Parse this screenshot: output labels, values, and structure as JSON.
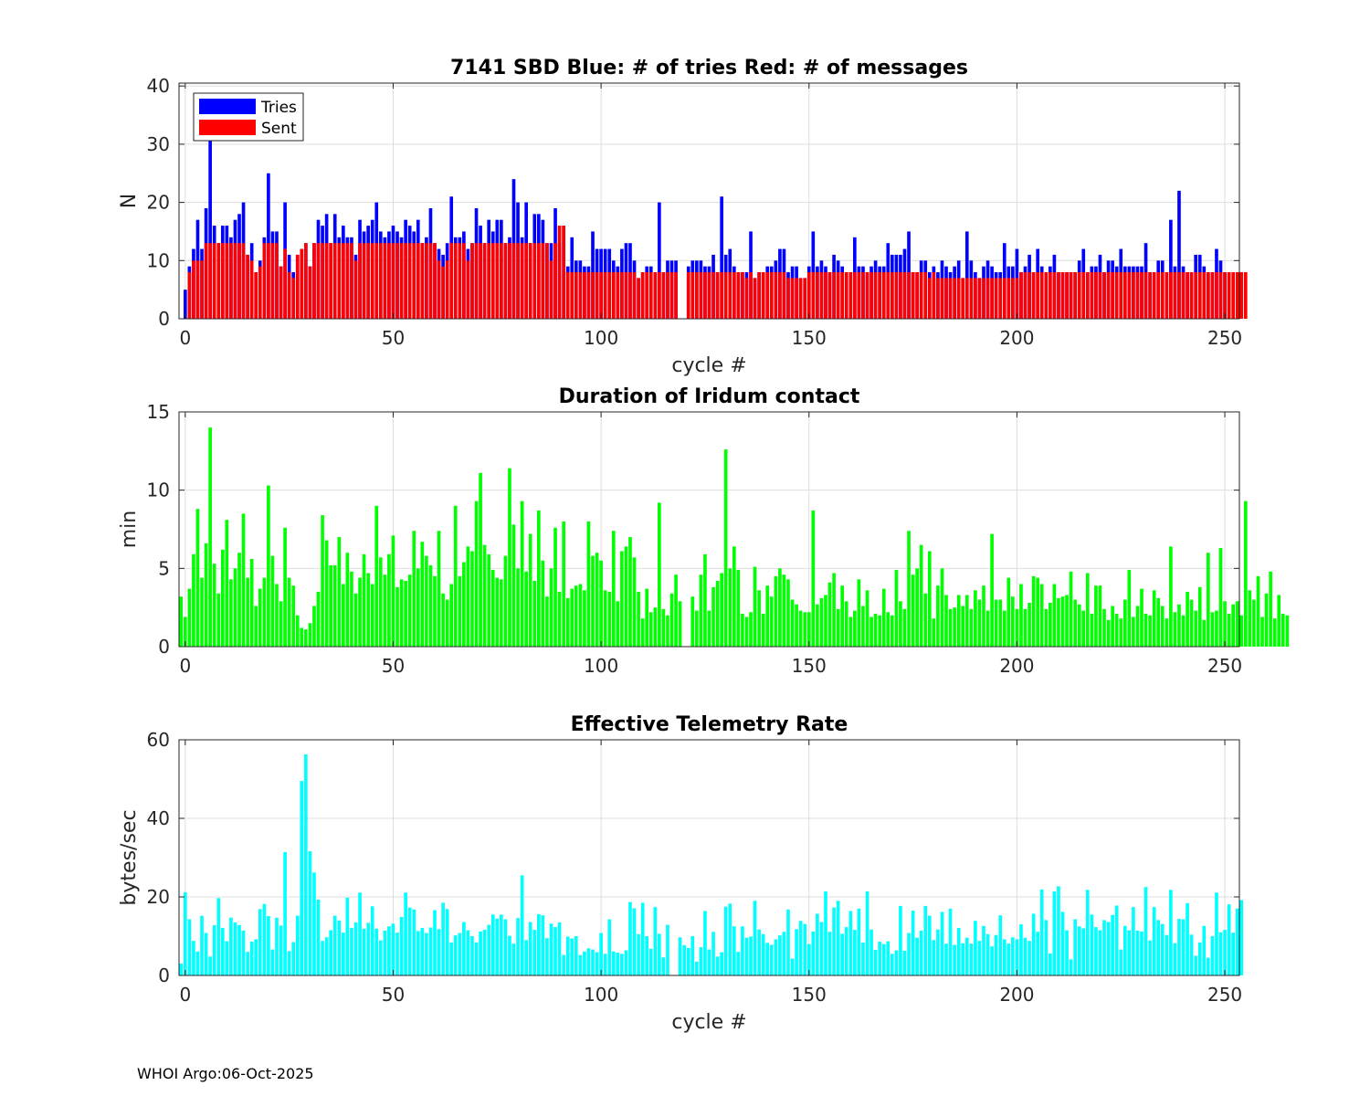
{
  "footer": "WHOI Argo:06-Oct-2025",
  "chart_data": [
    {
      "id": "sbd",
      "type": "bar",
      "title": "7141 SBD  Blue: # of tries   Red: # of messages",
      "xlabel": "cycle #",
      "ylabel": "N",
      "xlim": [
        -1.5,
        253.5
      ],
      "ylim": [
        0,
        40.5
      ],
      "xticks": [
        0,
        50,
        100,
        150,
        200,
        250
      ],
      "yticks": [
        0,
        10,
        20,
        30,
        40
      ],
      "grid": true,
      "legend": {
        "position": "top-left",
        "entries": [
          {
            "label": "Tries",
            "color": "#0000ff"
          },
          {
            "label": "Sent",
            "color": "#ff0000"
          }
        ]
      },
      "series": [
        {
          "name": "Tries",
          "color": "#0000ff",
          "x_start": 0,
          "values": [
            5,
            9,
            12,
            17,
            12,
            19,
            32,
            16,
            13,
            16,
            16,
            14,
            17,
            18,
            20,
            11,
            13,
            8,
            10,
            14,
            25,
            15,
            15,
            9,
            20,
            11,
            8,
            11,
            12,
            13,
            9,
            13,
            17,
            16,
            18,
            13,
            18,
            14,
            16,
            14,
            14,
            11,
            17,
            15,
            16,
            17,
            20,
            15,
            14,
            15,
            16,
            15,
            14,
            17,
            16,
            15,
            17,
            13,
            14,
            19,
            13,
            12,
            11,
            13,
            21,
            14,
            14,
            15,
            12,
            13,
            19,
            16,
            13,
            17,
            15,
            17,
            17,
            13,
            14,
            24,
            20,
            14,
            20,
            13,
            18,
            18,
            17,
            13,
            13,
            19,
            13,
            16,
            9,
            14,
            10,
            10,
            9,
            9,
            15,
            12,
            12,
            12,
            12,
            10,
            9,
            12,
            13,
            13,
            10,
            7,
            8,
            9,
            9,
            8,
            20,
            8,
            10,
            10,
            10,
            0,
            0,
            9,
            10,
            10,
            10,
            9,
            9,
            11,
            8,
            21,
            11,
            12,
            9,
            8,
            8,
            8,
            15,
            7,
            8,
            8,
            9,
            9,
            10,
            12,
            12,
            8,
            9,
            9,
            7,
            7,
            9,
            15,
            9,
            10,
            9,
            8,
            11,
            10,
            9,
            8,
            8,
            14,
            9,
            9,
            8,
            9,
            10,
            9,
            9,
            13,
            11,
            11,
            11,
            12,
            15,
            8,
            8,
            10,
            10,
            8,
            9,
            8,
            10,
            9,
            8,
            9,
            10,
            7,
            15,
            10,
            8,
            7,
            9,
            10,
            9,
            8,
            8,
            13,
            9,
            9,
            12,
            8,
            9,
            11,
            8,
            12,
            9,
            8,
            9,
            11,
            8,
            8,
            8,
            8,
            8,
            10,
            12,
            8,
            9,
            9,
            11,
            8,
            10,
            10,
            9,
            12,
            9,
            9,
            9,
            9,
            9,
            13,
            8,
            8,
            10,
            10,
            8,
            17,
            9,
            22,
            9,
            8,
            8,
            11,
            11,
            9,
            8,
            8,
            12,
            10,
            8
          ]
        },
        {
          "name": "Sent",
          "color": "#ff0000",
          "x_start": 0,
          "values": [
            0,
            8,
            10,
            10,
            10,
            13,
            13,
            13,
            13,
            13,
            13,
            13,
            13,
            13,
            13,
            11,
            10,
            8,
            9,
            13,
            13,
            13,
            13,
            9,
            12,
            8,
            7,
            11,
            12,
            13,
            9,
            13,
            13,
            13,
            13,
            13,
            13,
            13,
            13,
            13,
            13,
            10,
            13,
            13,
            13,
            13,
            13,
            13,
            13,
            13,
            13,
            13,
            13,
            13,
            13,
            13,
            13,
            13,
            13,
            13,
            13,
            10,
            9,
            10,
            13,
            13,
            13,
            13,
            10,
            13,
            13,
            13,
            13,
            13,
            13,
            13,
            13,
            13,
            13,
            13,
            13,
            13,
            13,
            13,
            13,
            13,
            13,
            13,
            10,
            13,
            16,
            16,
            8,
            8,
            8,
            8,
            8,
            8,
            8,
            8,
            8,
            8,
            8,
            8,
            8,
            8,
            8,
            8,
            8,
            7,
            8,
            8,
            8,
            8,
            8,
            8,
            8,
            8,
            8,
            0,
            0,
            8,
            8,
            8,
            8,
            8,
            8,
            8,
            8,
            8,
            8,
            8,
            8,
            8,
            8,
            7,
            8,
            7,
            8,
            8,
            8,
            8,
            8,
            8,
            8,
            7,
            7,
            7,
            7,
            7,
            8,
            8,
            8,
            8,
            8,
            8,
            8,
            8,
            8,
            8,
            8,
            8,
            8,
            8,
            8,
            8,
            8,
            8,
            8,
            8,
            8,
            8,
            8,
            8,
            8,
            8,
            8,
            8,
            8,
            7,
            8,
            7,
            7,
            7,
            7,
            7,
            7,
            7,
            7,
            7,
            7,
            7,
            7,
            7,
            7,
            7,
            7,
            7,
            7,
            7,
            7,
            8,
            8,
            8,
            8,
            8,
            8,
            8,
            8,
            8,
            8,
            8,
            8,
            8,
            8,
            8,
            8,
            8,
            8,
            8,
            8,
            8,
            8,
            8,
            8,
            8,
            8,
            8,
            8,
            8,
            8,
            8,
            8,
            8,
            8,
            8,
            8,
            8,
            8,
            8,
            8,
            8,
            8,
            8,
            8,
            8,
            8,
            8,
            8,
            8,
            8,
            8,
            8,
            8,
            8,
            8
          ]
        }
      ]
    },
    {
      "id": "duration",
      "type": "bar",
      "title": "Duration of Iridum contact",
      "xlabel": "",
      "ylabel": "min",
      "xlim": [
        -1.5,
        253.5
      ],
      "ylim": [
        0,
        15
      ],
      "xticks": [
        0,
        50,
        100,
        150,
        200,
        250
      ],
      "yticks": [
        0,
        5,
        10,
        15
      ],
      "grid": true,
      "series": [
        {
          "name": "Duration",
          "color": "#00ff00",
          "x_start": -1,
          "values": [
            3.2,
            1.9,
            3.7,
            5.9,
            8.8,
            4.4,
            6.6,
            14.0,
            5.3,
            3.4,
            6.2,
            8.1,
            4.3,
            5.0,
            6.0,
            8.5,
            4.4,
            5.6,
            2.6,
            3.7,
            4.4,
            10.3,
            5.8,
            4.0,
            2.9,
            7.6,
            4.4,
            3.9,
            2.0,
            1.2,
            1.1,
            1.5,
            2.6,
            3.5,
            8.4,
            6.8,
            5.2,
            5.2,
            7.0,
            4.0,
            6.0,
            4.8,
            3.4,
            4.4,
            5.9,
            4.7,
            4.0,
            9.0,
            5.7,
            4.6,
            5.9,
            7.1,
            3.8,
            4.3,
            4.2,
            4.6,
            7.4,
            5.0,
            6.7,
            5.8,
            5.2,
            4.5,
            7.4,
            3.4,
            3.0,
            4.0,
            9.0,
            4.5,
            5.4,
            6.4,
            6.1,
            9.3,
            11.1,
            6.5,
            5.9,
            4.9,
            4.4,
            4.3,
            5.8,
            11.4,
            7.8,
            5.0,
            9.3,
            4.8,
            7.2,
            4.2,
            8.7,
            5.5,
            3.2,
            5.0,
            7.6,
            3.5,
            8.0,
            3.1,
            3.7,
            3.9,
            4.0,
            3.6,
            8.0,
            5.8,
            6.0,
            5.5,
            3.6,
            3.5,
            7.4,
            2.9,
            6.1,
            6.4,
            7.0,
            5.7,
            3.5,
            1.8,
            3.7,
            2.2,
            2.5,
            9.2,
            2.4,
            2.0,
            3.4,
            4.6,
            2.9,
            0.0,
            0.0,
            3.2,
            2.3,
            4.6,
            5.9,
            2.3,
            3.8,
            4.2,
            4.7,
            12.6,
            5.0,
            6.4,
            4.9,
            2.1,
            1.9,
            2.2,
            5.1,
            3.6,
            2.1,
            3.9,
            3.2,
            4.5,
            5.0,
            4.6,
            4.3,
            3.0,
            2.7,
            2.3,
            2.2,
            2.2,
            8.7,
            2.7,
            3.1,
            3.3,
            4.1,
            4.7,
            2.4,
            3.9,
            2.9,
            1.9,
            2.3,
            4.3,
            2.6,
            3.6,
            1.9,
            2.1,
            2.0,
            3.7,
            2.2,
            2.0,
            4.9,
            2.9,
            2.4,
            7.4,
            4.6,
            5.0,
            6.5,
            3.4,
            6.1,
            1.8,
            3.9,
            5.0,
            3.3,
            2.4,
            2.5,
            3.3,
            2.6,
            3.3,
            2.4,
            3.6,
            3.0,
            3.9,
            2.3,
            7.2,
            3.0,
            3.0,
            2.3,
            4.4,
            3.2,
            2.4,
            4.0,
            2.4,
            2.8,
            4.5,
            4.4,
            4.0,
            2.4,
            2.8,
            4.0,
            3.1,
            3.2,
            3.3,
            4.8,
            3.0,
            2.7,
            2.3,
            4.7,
            2.1,
            3.9,
            3.9,
            2.4,
            1.7,
            2.6,
            2.1,
            1.8,
            3.0,
            4.9,
            1.9,
            2.6,
            3.7,
            2.1,
            2.0,
            3.6,
            3.1,
            2.6,
            1.8,
            6.4,
            2.2,
            2.7,
            2.0,
            3.5,
            3.0,
            2.3,
            3.8,
            1.7,
            6.0,
            2.2,
            2.3,
            6.3,
            2.9,
            2.1,
            2.7,
            2.9,
            2.0,
            9.3,
            3.6,
            3.0,
            4.5,
            1.9,
            3.4,
            4.8,
            1.8,
            3.3,
            2.1,
            2.0
          ]
        }
      ]
    },
    {
      "id": "rate",
      "type": "bar",
      "title": "Effective Telemetry Rate",
      "xlabel": "cycle #",
      "ylabel": "bytes/sec",
      "xlim": [
        -1.5,
        253.5
      ],
      "ylim": [
        0,
        60
      ],
      "xticks": [
        0,
        50,
        100,
        150,
        200,
        250
      ],
      "yticks": [
        0,
        20,
        40,
        60
      ],
      "grid": true,
      "series": [
        {
          "name": "Rate",
          "color": "#00ffff",
          "x_start": -1,
          "values": [
            3.0,
            21.2,
            14.3,
            8.8,
            6.1,
            15.2,
            10.8,
            4.8,
            12.8,
            19.7,
            12.1,
            8.7,
            14.7,
            13.5,
            12.8,
            11.4,
            6.0,
            8.6,
            9.2,
            16.9,
            18.2,
            15.1,
            6.6,
            14.7,
            12.7,
            31.4,
            6.2,
            8.5,
            15.2,
            49.5,
            56.3,
            31.6,
            26.2,
            19.3,
            8.8,
            9.7,
            11.5,
            15.2,
            14.0,
            10.9,
            19.8,
            12.1,
            13.5,
            21.1,
            11.9,
            13.4,
            17.6,
            11.9,
            8.9,
            11.4,
            12.5,
            13.2,
            10.9,
            14.9,
            21.1,
            17.3,
            16.8,
            11.3,
            12.1,
            10.8,
            12.2,
            16.6,
            11.8,
            18.5,
            16.9,
            8.4,
            10.2,
            10.8,
            13.6,
            11.5,
            10.0,
            8.4,
            11.2,
            11.6,
            12.9,
            15.5,
            14.5,
            15.5,
            14.3,
            10.1,
            8.1,
            14.6,
            25.5,
            9.0,
            13.6,
            11.6,
            15.6,
            15.3,
            9.5,
            13.2,
            12.3,
            13.5,
            5.2,
            9.9,
            9.4,
            10.0,
            5.2,
            6.1,
            6.9,
            6.6,
            5.9,
            10.8,
            5.5,
            14.3,
            6.1,
            5.8,
            5.5,
            6.4,
            18.7,
            17.1,
            10.5,
            18.5,
            10.0,
            6.8,
            17.4,
            10.6,
            4.6,
            12.9,
            0.0,
            0.0,
            9.7,
            7.7,
            7.0,
            10.0,
            3.5,
            7.2,
            16.4,
            6.6,
            11.1,
            4.8,
            5.9,
            17.5,
            18.3,
            12.5,
            6.0,
            12.5,
            9.6,
            9.9,
            19.0,
            11.7,
            10.5,
            8.3,
            7.8,
            9.2,
            10.2,
            11.1,
            16.8,
            4.3,
            11.8,
            13.9,
            13.1,
            8.0,
            11.2,
            15.7,
            13.6,
            21.4,
            11.1,
            17.3,
            19.0,
            10.6,
            12.3,
            16.4,
            11.6,
            17.0,
            8.4,
            21.4,
            11.7,
            6.5,
            8.6,
            8.0,
            8.7,
            5.5,
            6.4,
            17.7,
            6.3,
            10.8,
            16.5,
            9.6,
            11.4,
            17.7,
            15.2,
            9.0,
            11.7,
            16.2,
            8.1,
            17.0,
            7.8,
            12.1,
            8.2,
            9.6,
            8.1,
            13.9,
            8.8,
            12.6,
            10.5,
            7.4,
            10.3,
            15.3,
            9.2,
            8.1,
            9.7,
            9.2,
            13.0,
            9.6,
            8.8,
            15.7,
            11.1,
            21.9,
            14.1,
            5.6,
            21.4,
            22.7,
            16.2,
            11.5,
            4.1,
            14.3,
            12.5,
            12.0,
            21.8,
            15.5,
            12.3,
            11.5,
            14.1,
            13.6,
            15.4,
            17.8,
            6.6,
            12.6,
            11.5,
            17.4,
            11.4,
            11.2,
            22.5,
            8.9,
            17.4,
            14.1,
            13.1,
            10.3,
            21.8,
            8.2,
            14.4,
            14.3,
            18.4,
            10.4,
            5.0,
            8.4,
            12.6,
            4.5,
            10.0,
            21.1,
            11.0,
            11.6,
            18.1,
            10.9,
            17.0,
            19.2
          ]
        }
      ]
    }
  ]
}
